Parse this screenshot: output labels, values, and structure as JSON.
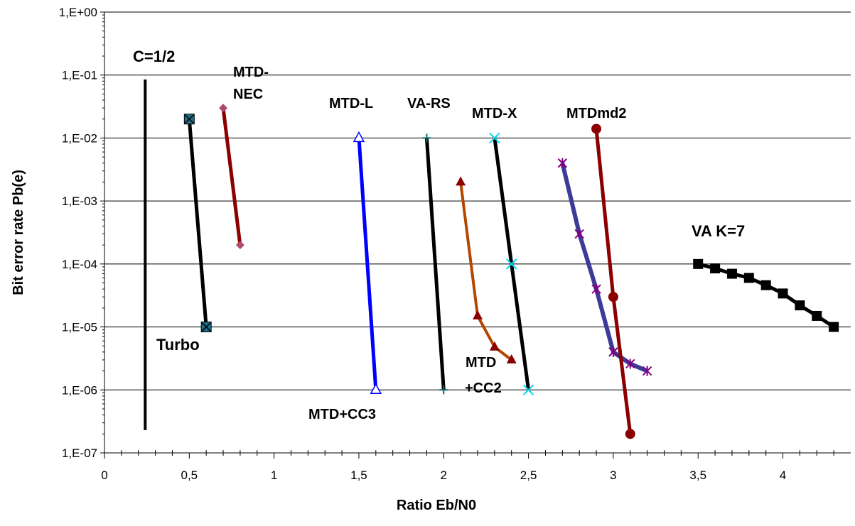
{
  "chart_data": {
    "type": "line",
    "xlabel": "Ratio  Eb/N0",
    "ylabel": "Bit error rate  Pb(e)",
    "xlim": [
      0,
      4.4
    ],
    "ylim": [
      1e-07,
      1
    ],
    "yscale": "log",
    "grid": "horizontal",
    "x_ticks": [
      0,
      0.5,
      1,
      1.5,
      2,
      2.5,
      3,
      3.5,
      4
    ],
    "x_tick_labels": [
      "0",
      "0,5",
      "1",
      "1,5",
      "2",
      "2,5",
      "3",
      "3,5",
      "4"
    ],
    "y_ticks": [
      1e-07,
      1e-06,
      1e-05,
      0.0001,
      0.001,
      0.01,
      0.1,
      1
    ],
    "y_tick_labels": [
      "1,E-07",
      "1,E-06",
      "1,E-05",
      "1,E-04",
      "1,E-03",
      "1,E-02",
      "1,E-01",
      "1,E+00"
    ],
    "series": [
      {
        "name": "C=1/2",
        "color": "#000000",
        "marker": "none",
        "width": 4,
        "x": [
          0.24,
          0.24
        ],
        "y": [
          0.085,
          2.3e-07
        ]
      },
      {
        "name": "Turbo",
        "color": "#000000",
        "marker": "square-x",
        "width": 5,
        "x": [
          0.5,
          0.6
        ],
        "y": [
          0.02,
          1e-05
        ]
      },
      {
        "name": "MTD-NEC",
        "color": "#8b0000",
        "marker": "diamond",
        "width": 5,
        "x": [
          0.7,
          0.8
        ],
        "y": [
          0.03,
          0.0002
        ]
      },
      {
        "name": "MTD-L",
        "color": "#0000ff",
        "marker": "triangle",
        "width": 5,
        "x": [
          1.5,
          1.6
        ],
        "y": [
          0.01,
          1e-06
        ]
      },
      {
        "name": "VA-RS",
        "color": "#000000",
        "marker": "star",
        "width": 5,
        "x": [
          1.9,
          2.0
        ],
        "y": [
          0.01,
          1e-06
        ]
      },
      {
        "name": "MTD +CC2",
        "color": "#b34700",
        "marker": "triangle-filled",
        "width": 4,
        "x": [
          2.1,
          2.2,
          2.3,
          2.4
        ],
        "y": [
          0.002,
          1.5e-05,
          4.8e-06,
          3e-06
        ]
      },
      {
        "name": "MTD-X",
        "color": "#000000",
        "marker": "x-cyan",
        "width": 5,
        "x": [
          2.3,
          2.4,
          2.5
        ],
        "y": [
          0.01,
          0.0001,
          1e-06
        ]
      },
      {
        "name": "MTD+CC3",
        "color": "#3b3b9a",
        "marker": "asterisk",
        "width": 6,
        "x": [
          2.7,
          2.8,
          2.9,
          3.0,
          3.1,
          3.2
        ],
        "y": [
          0.004,
          0.0003,
          4e-05,
          4e-06,
          2.6e-06,
          2e-06
        ]
      },
      {
        "name": "MTDmd2",
        "color": "#8b0000",
        "marker": "circle",
        "width": 5,
        "x": [
          2.9,
          3.0,
          3.1
        ],
        "y": [
          0.014,
          3e-05,
          2e-07
        ]
      },
      {
        "name": "VA  K=7",
        "color": "#000000",
        "marker": "square",
        "width": 5,
        "x": [
          3.5,
          3.6,
          3.7,
          3.8,
          3.9,
          4.0,
          4.1,
          4.2,
          4.3
        ],
        "y": [
          0.0001,
          8.5e-05,
          7e-05,
          6e-05,
          4.6e-05,
          3.4e-05,
          2.2e-05,
          1.5e-05,
          1e-05
        ]
      }
    ],
    "annotations": [
      {
        "key": "c12",
        "text": "C=1/2"
      },
      {
        "key": "turbo",
        "text": "Turbo"
      },
      {
        "key": "mtdnec1",
        "text": "MTD-"
      },
      {
        "key": "mtdnec2",
        "text": "NEC"
      },
      {
        "key": "mtdl",
        "text": "MTD-L"
      },
      {
        "key": "vars",
        "text": "VA-RS"
      },
      {
        "key": "mtdx",
        "text": "MTD-X"
      },
      {
        "key": "mtdmd2",
        "text": "MTDmd2"
      },
      {
        "key": "vak7",
        "text": "VA  K=7"
      },
      {
        "key": "mtdcc3",
        "text": "MTD+CC3"
      },
      {
        "key": "cc2a",
        "text": "MTD"
      },
      {
        "key": "cc2b",
        "text": "+CC2"
      }
    ]
  }
}
